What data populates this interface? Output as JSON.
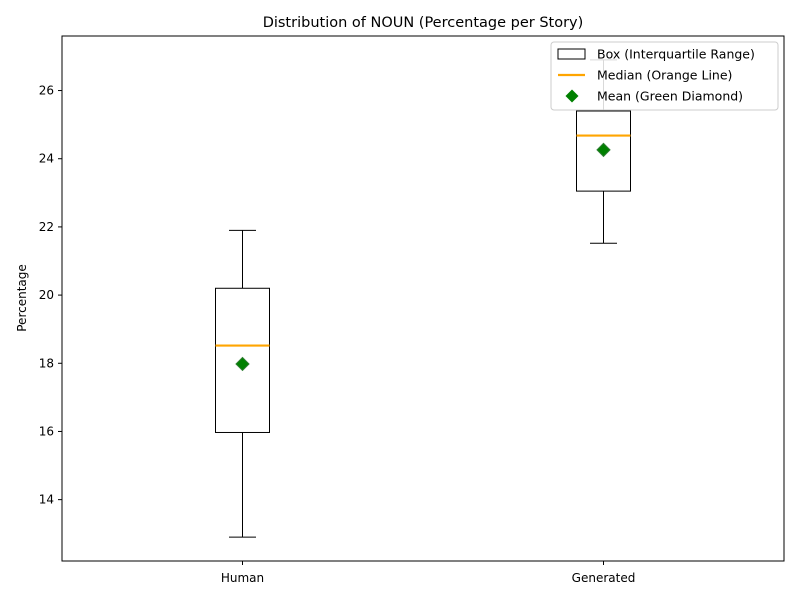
{
  "chart_data": {
    "type": "box",
    "title": "Distribution of NOUN (Percentage per Story)",
    "xlabel": "",
    "ylabel": "Percentage",
    "ylim": [
      12.2,
      27.6
    ],
    "yticks": [
      14,
      16,
      18,
      20,
      22,
      24,
      26
    ],
    "categories": [
      "Human",
      "Generated"
    ],
    "series": [
      {
        "category": "Human",
        "whisker_low": 12.9,
        "q1": 15.97,
        "median": 18.52,
        "q3": 20.2,
        "whisker_high": 21.9,
        "mean": 17.98
      },
      {
        "category": "Generated",
        "whisker_low": 21.52,
        "q1": 23.05,
        "median": 24.68,
        "q3": 25.4,
        "whisker_high": 26.9,
        "mean": 24.26
      }
    ],
    "legend": {
      "position": "upper right",
      "entries": [
        {
          "label": "Box (Interquartile Range)",
          "symbol": "box"
        },
        {
          "label": "Median (Orange Line)",
          "symbol": "line"
        },
        {
          "label": "Mean (Green Diamond)",
          "symbol": "diamond"
        }
      ]
    },
    "colors": {
      "box": "#000000",
      "median": "#FFA500",
      "mean": "#008000",
      "whisker": "#000000"
    },
    "grid": false
  }
}
